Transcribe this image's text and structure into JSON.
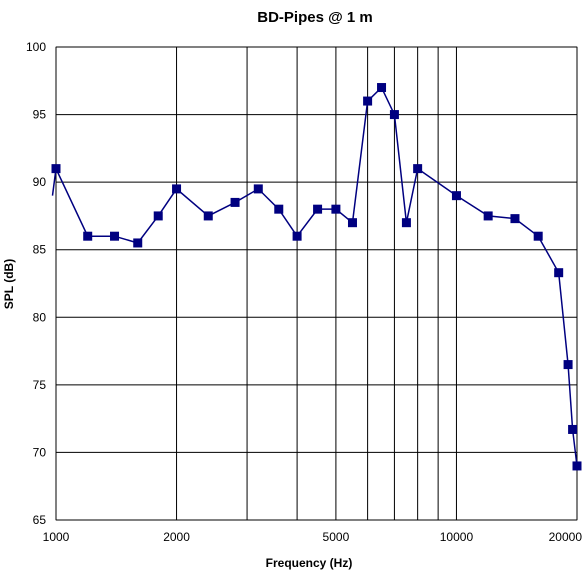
{
  "chart_data": {
    "type": "line",
    "title": "BD-Pipes @ 1 m",
    "xlabel": "Frequency (Hz)",
    "ylabel": "SPL (dB)",
    "x_scale": "log",
    "xlim": [
      1000,
      20000
    ],
    "ylim": [
      65,
      100
    ],
    "x_ticks": [
      1000,
      2000,
      5000,
      10000,
      20000
    ],
    "x_tick_labels": [
      "1000",
      "2000",
      "5000",
      "10000",
      "20000"
    ],
    "y_ticks": [
      65,
      70,
      75,
      80,
      85,
      90,
      95,
      100
    ],
    "y_tick_labels": [
      "65",
      "70",
      "75",
      "80",
      "85",
      "90",
      "95",
      "100"
    ],
    "x_gridlines": [
      1000,
      2000,
      3000,
      4000,
      5000,
      6000,
      7000,
      8000,
      9000,
      10000,
      20000
    ],
    "grid": true,
    "legend": "none",
    "line_start": [
      980,
      89
    ],
    "series": [
      {
        "color": "#000080",
        "marker": "square",
        "x": [
          1000,
          1200,
          1400,
          1600,
          1800,
          2000,
          2400,
          2800,
          3200,
          3600,
          4000,
          4500,
          5000,
          5500,
          6000,
          6500,
          7000,
          7500,
          8000,
          10000,
          12000,
          14000,
          16000,
          18000,
          19000,
          19500,
          20000
        ],
        "values": [
          91,
          86,
          86,
          85.5,
          87.5,
          89.5,
          87.5,
          88.5,
          89.5,
          88,
          86,
          88,
          88,
          87,
          96,
          97,
          95,
          87,
          91,
          89,
          87.5,
          87.3,
          86,
          83.3,
          76.5,
          71.7,
          69
        ]
      }
    ]
  }
}
